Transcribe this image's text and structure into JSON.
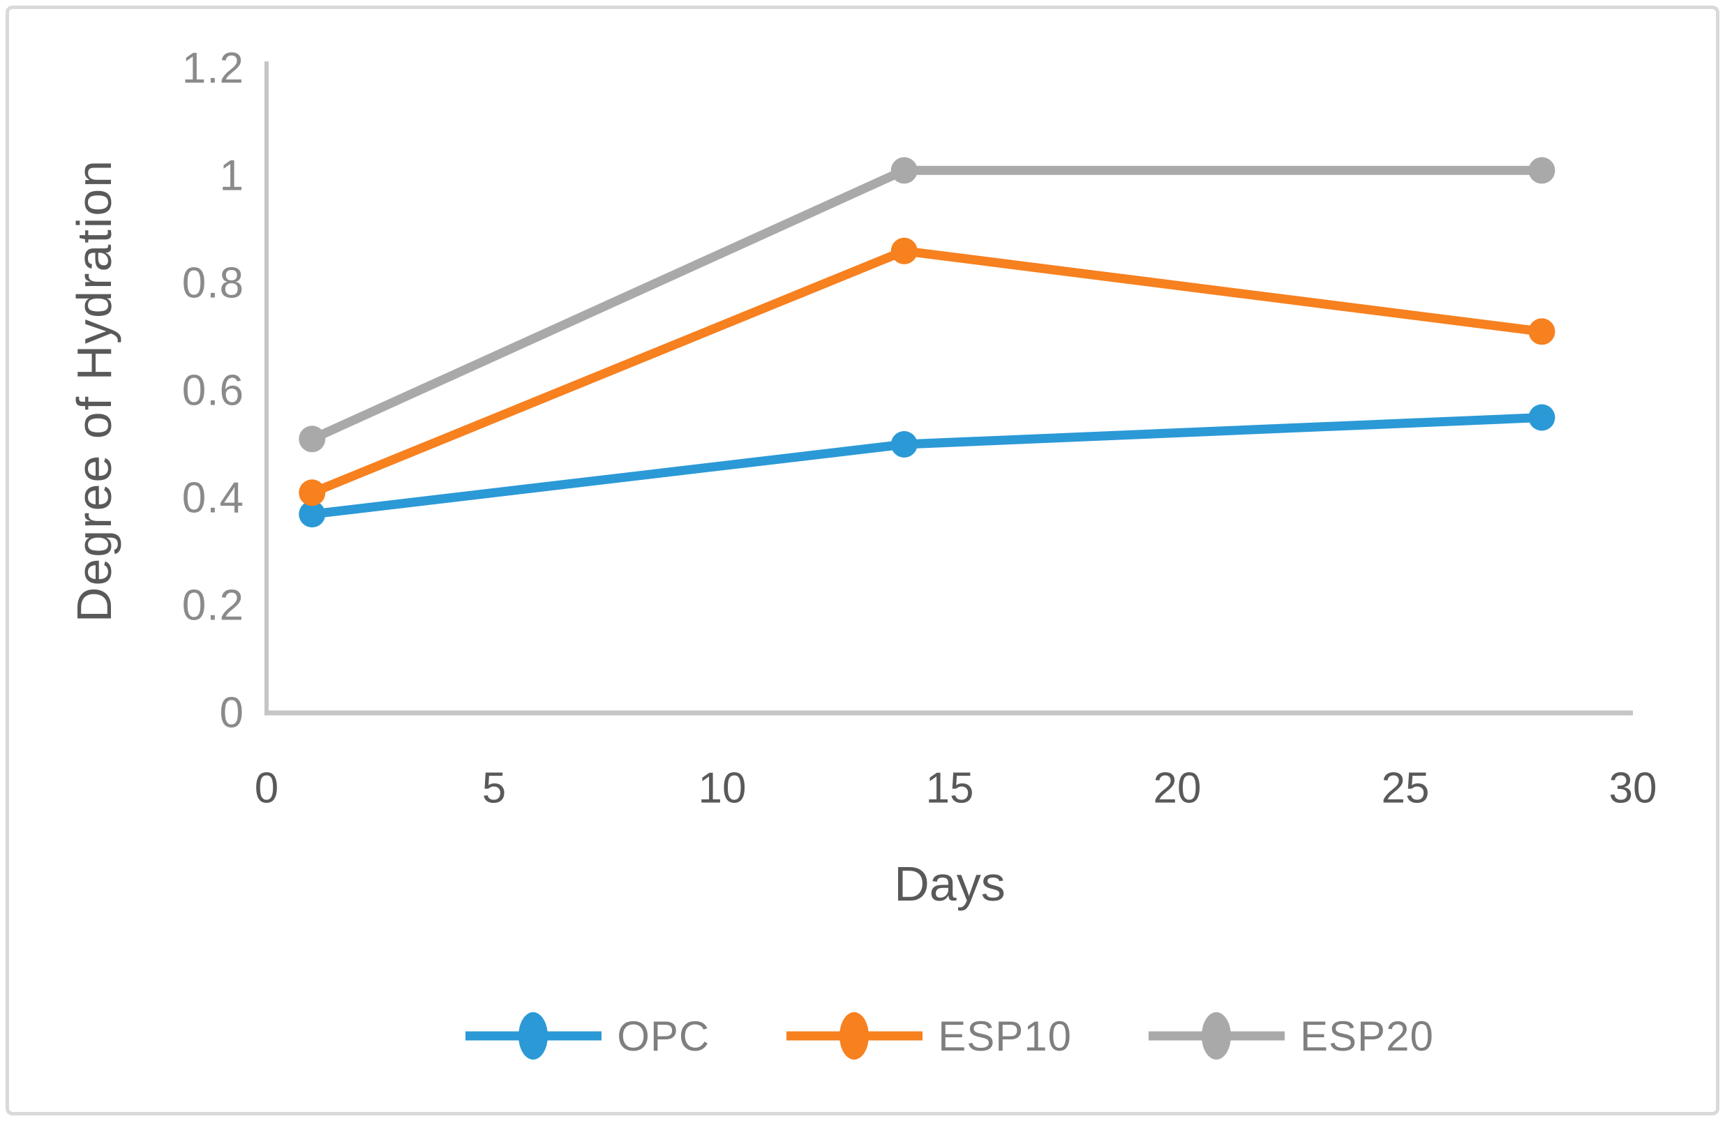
{
  "chart_data": {
    "type": "line",
    "title": "",
    "xlabel": "Days",
    "ylabel": "Degree of Hydration",
    "x": [
      1,
      14,
      28
    ],
    "series": [
      {
        "name": "OPC",
        "color": "#2b99d6",
        "values": [
          0.37,
          0.5,
          0.55
        ]
      },
      {
        "name": "ESP10",
        "color": "#f7801f",
        "values": [
          0.41,
          0.86,
          0.71
        ]
      },
      {
        "name": "ESP20",
        "color": "#a9a9a9",
        "values": [
          0.51,
          1.01,
          1.01
        ]
      }
    ],
    "xlim": [
      0,
      30
    ],
    "ylim": [
      0,
      1.2
    ],
    "x_tick_labels": [
      "0",
      "5",
      "10",
      "15",
      "20",
      "25",
      "30"
    ],
    "y_tick_labels": [
      "0",
      "0.2",
      "0.4",
      "0.6",
      "0.8",
      "1",
      "1.2"
    ],
    "grid": false,
    "legend_position": "bottom-center",
    "axis_color": "#c5c5c5",
    "y_tick_color": "#8a8a8a",
    "x_tick_color": "#595959",
    "axis_title_color": "#595959",
    "legend_text_color": "#7f7f7f",
    "line_width": 13,
    "marker_radius": 19
  }
}
